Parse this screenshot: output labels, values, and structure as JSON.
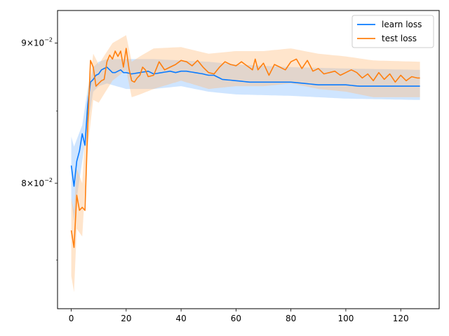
{
  "chart_data": {
    "type": "line",
    "title": "",
    "xlabel": "",
    "ylabel": "",
    "xlim": [
      -5,
      134
    ],
    "ylim": [
      0.072,
      0.0925
    ],
    "yscale": "log",
    "x_ticks": [
      0,
      20,
      40,
      60,
      80,
      100,
      120
    ],
    "x_tick_labels": [
      "0",
      "20",
      "40",
      "60",
      "80",
      "100",
      "120"
    ],
    "y_ticks": [
      0.08,
      0.09
    ],
    "y_tick_labels": [
      {
        "base": "8",
        "mult": "×",
        "ten": "10",
        "exp": "−2"
      },
      {
        "base": "9",
        "mult": "×",
        "ten": "10",
        "exp": "−2"
      }
    ],
    "legend_position": "upper right",
    "series": [
      {
        "name": "learn loss",
        "color": "#0a7bff",
        "band_color": "#87bdff",
        "anchors": [
          [
            0,
            0.0812
          ],
          [
            1,
            0.0798
          ],
          [
            2,
            0.0815
          ],
          [
            3,
            0.0822
          ],
          [
            4,
            0.0834
          ],
          [
            5,
            0.0826
          ],
          [
            6,
            0.0855
          ],
          [
            7,
            0.0871
          ],
          [
            8,
            0.0873
          ],
          [
            9,
            0.0876
          ],
          [
            10,
            0.0877
          ],
          [
            11,
            0.088
          ],
          [
            12,
            0.0881
          ],
          [
            13,
            0.0882
          ],
          [
            14,
            0.088
          ],
          [
            15,
            0.0878
          ],
          [
            16,
            0.0878
          ],
          [
            17,
            0.0879
          ],
          [
            18,
            0.088
          ],
          [
            19,
            0.0878
          ],
          [
            20,
            0.0878
          ],
          [
            22,
            0.0877
          ],
          [
            25,
            0.0878
          ],
          [
            28,
            0.0879
          ],
          [
            30,
            0.0877
          ],
          [
            33,
            0.0878
          ],
          [
            36,
            0.0879
          ],
          [
            38,
            0.0878
          ],
          [
            40,
            0.0879
          ],
          [
            42,
            0.0879
          ],
          [
            45,
            0.0878
          ],
          [
            48,
            0.0877
          ],
          [
            50,
            0.0876
          ],
          [
            52,
            0.0876
          ],
          [
            55,
            0.0873
          ],
          [
            60,
            0.0872
          ],
          [
            65,
            0.0871
          ],
          [
            70,
            0.0871
          ],
          [
            75,
            0.0871
          ],
          [
            80,
            0.0871
          ],
          [
            85,
            0.087
          ],
          [
            90,
            0.0869
          ],
          [
            95,
            0.0869
          ],
          [
            100,
            0.0869
          ],
          [
            105,
            0.0868
          ],
          [
            110,
            0.0868
          ],
          [
            115,
            0.0868
          ],
          [
            120,
            0.0868
          ],
          [
            127,
            0.0868
          ]
        ],
        "band_anchors": [
          [
            0,
            0.0832,
            0.079
          ],
          [
            1,
            0.0825,
            0.0775
          ],
          [
            2,
            0.083,
            0.079
          ],
          [
            4,
            0.084,
            0.0815
          ],
          [
            6,
            0.0866,
            0.084
          ],
          [
            8,
            0.0882,
            0.0864
          ],
          [
            10,
            0.0886,
            0.0868
          ],
          [
            13,
            0.0888,
            0.087
          ],
          [
            20,
            0.0888,
            0.0866
          ],
          [
            30,
            0.0888,
            0.0866
          ],
          [
            40,
            0.0887,
            0.0868
          ],
          [
            50,
            0.0886,
            0.0864
          ],
          [
            60,
            0.0884,
            0.0862
          ],
          [
            80,
            0.0882,
            0.0861
          ],
          [
            100,
            0.0881,
            0.0859
          ],
          [
            127,
            0.088,
            0.0858
          ]
        ]
      },
      {
        "name": "test loss",
        "color": "#ff7f0e",
        "band_color": "#ffbf80",
        "anchors": [
          [
            0,
            0.0769
          ],
          [
            1,
            0.0758
          ],
          [
            2,
            0.0792
          ],
          [
            3,
            0.0782
          ],
          [
            4,
            0.0784
          ],
          [
            5,
            0.0782
          ],
          [
            6,
            0.084
          ],
          [
            7,
            0.0887
          ],
          [
            8,
            0.0882
          ],
          [
            9,
            0.0868
          ],
          [
            10,
            0.087
          ],
          [
            11,
            0.0872
          ],
          [
            12,
            0.0873
          ],
          [
            13,
            0.0886
          ],
          [
            14,
            0.0891
          ],
          [
            15,
            0.0888
          ],
          [
            16,
            0.0894
          ],
          [
            17,
            0.089
          ],
          [
            18,
            0.0894
          ],
          [
            19,
            0.0882
          ],
          [
            20,
            0.0896
          ],
          [
            21,
            0.0881
          ],
          [
            22,
            0.0872
          ],
          [
            23,
            0.0871
          ],
          [
            24,
            0.0874
          ],
          [
            25,
            0.0876
          ],
          [
            26,
            0.0882
          ],
          [
            27,
            0.088
          ],
          [
            28,
            0.0875
          ],
          [
            30,
            0.0876
          ],
          [
            32,
            0.0886
          ],
          [
            34,
            0.088
          ],
          [
            36,
            0.0882
          ],
          [
            38,
            0.0884
          ],
          [
            40,
            0.0887
          ],
          [
            42,
            0.0886
          ],
          [
            44,
            0.0883
          ],
          [
            46,
            0.0887
          ],
          [
            48,
            0.0882
          ],
          [
            50,
            0.0878
          ],
          [
            52,
            0.0877
          ],
          [
            54,
            0.0882
          ],
          [
            56,
            0.0886
          ],
          [
            58,
            0.0884
          ],
          [
            60,
            0.0883
          ],
          [
            62,
            0.0886
          ],
          [
            64,
            0.0883
          ],
          [
            66,
            0.088
          ],
          [
            67,
            0.0888
          ],
          [
            68,
            0.088
          ],
          [
            70,
            0.0885
          ],
          [
            72,
            0.0876
          ],
          [
            74,
            0.0884
          ],
          [
            76,
            0.0882
          ],
          [
            78,
            0.088
          ],
          [
            80,
            0.0886
          ],
          [
            82,
            0.0888
          ],
          [
            84,
            0.0881
          ],
          [
            86,
            0.0887
          ],
          [
            88,
            0.0879
          ],
          [
            90,
            0.0881
          ],
          [
            92,
            0.0877
          ],
          [
            94,
            0.0878
          ],
          [
            96,
            0.0879
          ],
          [
            98,
            0.0876
          ],
          [
            100,
            0.0878
          ],
          [
            102,
            0.088
          ],
          [
            104,
            0.0878
          ],
          [
            106,
            0.0874
          ],
          [
            108,
            0.0877
          ],
          [
            110,
            0.0872
          ],
          [
            112,
            0.0878
          ],
          [
            114,
            0.0873
          ],
          [
            116,
            0.0877
          ],
          [
            118,
            0.0871
          ],
          [
            120,
            0.0876
          ],
          [
            122,
            0.0872
          ],
          [
            124,
            0.0875
          ],
          [
            126,
            0.0874
          ],
          [
            127,
            0.0874
          ]
        ],
        "band_anchors": [
          [
            0,
            0.079,
            0.074
          ],
          [
            1,
            0.0782,
            0.073
          ],
          [
            2,
            0.081,
            0.077
          ],
          [
            4,
            0.08,
            0.0765
          ],
          [
            6,
            0.086,
            0.0825
          ],
          [
            8,
            0.0892,
            0.0858
          ],
          [
            10,
            0.0884,
            0.0856
          ],
          [
            15,
            0.09,
            0.0872
          ],
          [
            20,
            0.0906,
            0.088
          ],
          [
            22,
            0.0886,
            0.086
          ],
          [
            25,
            0.089,
            0.0862
          ],
          [
            30,
            0.0896,
            0.0866
          ],
          [
            40,
            0.0897,
            0.0872
          ],
          [
            50,
            0.0892,
            0.0866
          ],
          [
            60,
            0.0894,
            0.0868
          ],
          [
            70,
            0.0894,
            0.0868
          ],
          [
            80,
            0.0896,
            0.087
          ],
          [
            90,
            0.0892,
            0.0866
          ],
          [
            100,
            0.089,
            0.0864
          ],
          [
            110,
            0.0887,
            0.086
          ],
          [
            127,
            0.0886,
            0.086
          ]
        ]
      }
    ]
  }
}
